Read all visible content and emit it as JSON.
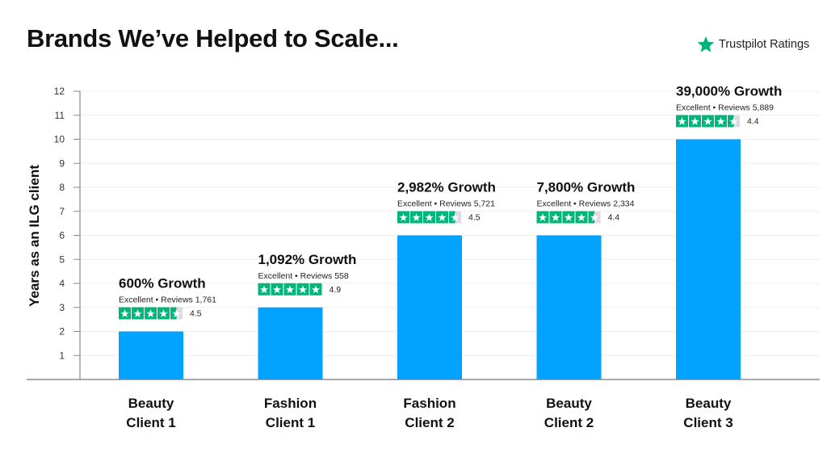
{
  "title": "Brands We’ve Helped to Scale...",
  "legend": {
    "label": "Trustpilot Ratings",
    "icon": "star-icon",
    "color": "#00b67a"
  },
  "colors": {
    "bar": "#00a3ff",
    "star": "#00b67a",
    "star_empty": "#dcdce6"
  },
  "chart_data": {
    "type": "bar",
    "title": "Brands We’ve Helped to Scale...",
    "xlabel": "",
    "ylabel": "Years as an ILG client",
    "ylim": [
      0,
      12
    ],
    "yticks": [
      1,
      2,
      3,
      4,
      5,
      6,
      7,
      8,
      9,
      10,
      11,
      12
    ],
    "grid": true,
    "categories": [
      [
        "Beauty",
        "Client 1"
      ],
      [
        "Fashion",
        "Client 1"
      ],
      [
        "Fashion",
        "Client 2"
      ],
      [
        "Beauty",
        "Client 2"
      ],
      [
        "Beauty",
        "Client 3"
      ]
    ],
    "values": [
      2,
      3,
      6,
      6,
      10
    ],
    "annotations": [
      {
        "growth": "600% Growth",
        "reviews": "Excellent • Reviews 1,761",
        "rating": "4.5",
        "stars": 4.5
      },
      {
        "growth": "1,092% Growth",
        "reviews": "Excellent • Reviews 558",
        "rating": "4.9",
        "stars": 5
      },
      {
        "growth": "2,982% Growth",
        "reviews": "Excellent • Reviews 5,721",
        "rating": "4.5",
        "stars": 4.5
      },
      {
        "growth": "7,800% Growth",
        "reviews": "Excellent • Reviews 2,334",
        "rating": "4.4",
        "stars": 4.5
      },
      {
        "growth": "39,000% Growth",
        "reviews": "Excellent • Reviews 5,889",
        "rating": "4.4",
        "stars": 4.5
      }
    ]
  }
}
